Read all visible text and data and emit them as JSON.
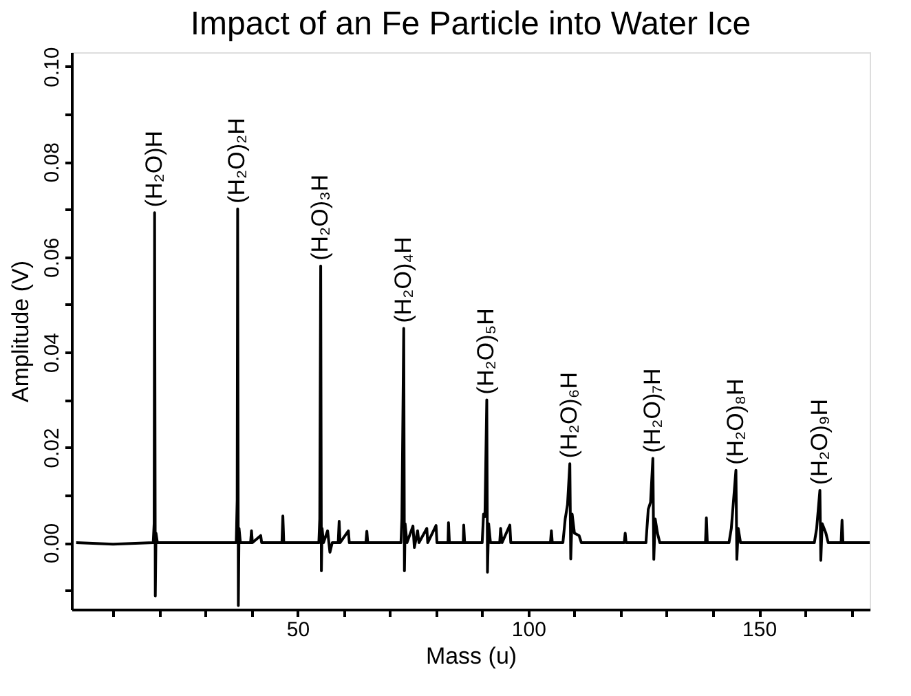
{
  "chart_data": {
    "type": "line",
    "title": "Impact of an Fe Particle into Water Ice",
    "xlabel": "Mass (u)",
    "ylabel": "Amplitude (V)",
    "xlim": [
      1,
      174
    ],
    "ylim": [
      -0.014,
      0.103
    ],
    "xticks": [
      {
        "value": 10,
        "label": null
      },
      {
        "value": 20,
        "label": null
      },
      {
        "value": 30,
        "label": null
      },
      {
        "value": 40,
        "label": null
      },
      50,
      {
        "value": 60,
        "label": null
      },
      {
        "value": 70,
        "label": null
      },
      {
        "value": 80,
        "label": null
      },
      {
        "value": 90,
        "label": null
      },
      100,
      {
        "value": 110,
        "label": null
      },
      {
        "value": 120,
        "label": null
      },
      {
        "value": 130,
        "label": null
      },
      {
        "value": 140,
        "label": null
      },
      150,
      {
        "value": 160,
        "label": null
      },
      {
        "value": 170,
        "label": null
      }
    ],
    "yticks": [
      {
        "value": -0.01,
        "label": null
      },
      {
        "value": 0,
        "label": "0.00"
      },
      {
        "value": 0.01,
        "label": null
      },
      {
        "value": 0.02,
        "label": "0.02"
      },
      {
        "value": 0.03,
        "label": null
      },
      {
        "value": 0.04,
        "label": "0.04"
      },
      {
        "value": 0.05,
        "label": null
      },
      {
        "value": 0.06,
        "label": "0.06"
      },
      {
        "value": 0.07,
        "label": null
      },
      {
        "value": 0.08,
        "label": "0.08"
      },
      {
        "value": 0.09,
        "label": null
      },
      {
        "value": 0.1,
        "label": "0.10"
      }
    ],
    "grid": false,
    "marker": "none",
    "line_style": "solid",
    "series": [
      {
        "color": "#000000",
        "x": [
          2,
          10,
          18.7,
          18.9,
          19,
          19.15,
          19.3,
          19.6,
          36.7,
          36.9,
          37,
          37.15,
          37.3,
          37.6,
          39.8,
          40,
          40.2,
          42,
          42.2,
          46.6,
          46.8,
          47,
          54.6,
          54.8,
          55,
          55.15,
          55.3,
          55.6,
          56.5,
          57,
          57.5,
          58.8,
          59,
          59.2,
          61,
          61.2,
          64.8,
          65,
          65.2,
          72.4,
          72.6,
          73,
          73.15,
          73.3,
          73.7,
          75,
          75.3,
          76,
          76.3,
          78,
          78.2,
          80,
          80.2,
          82.6,
          82.7,
          82.9,
          85.9,
          86,
          86.2,
          90,
          90.3,
          90.6,
          91,
          91.15,
          91.4,
          91.8,
          93.8,
          94,
          94.3,
          96,
          96.2,
          104.8,
          105,
          105.2,
          107.5,
          108,
          108.5,
          109,
          109.2,
          109.5,
          110,
          111,
          111.5,
          120.8,
          121,
          121.2,
          125.5,
          126,
          126.5,
          127,
          127.2,
          127.5,
          128,
          128.5,
          138.4,
          138.6,
          138.8,
          143.5,
          144,
          145,
          145.2,
          145.5,
          146,
          162,
          162.5,
          163.2,
          163.4,
          163.7,
          164.5,
          165,
          167.8,
          168,
          168.2,
          174
        ],
        "values": [
          0,
          -0.0003,
          0,
          0.004,
          0.0693,
          -0.0112,
          0.002,
          0,
          0,
          0.009,
          0.0701,
          -0.0132,
          0.003,
          0,
          0,
          0.0025,
          0,
          0.0015,
          0,
          0,
          0.0056,
          0,
          0,
          0.005,
          0.0581,
          -0.0059,
          0.003,
          0,
          0.0025,
          -0.002,
          0,
          0,
          0.0045,
          0,
          0.0025,
          0,
          0,
          0.0024,
          0,
          0,
          0.005,
          0.045,
          -0.0059,
          0.004,
          0,
          0.0035,
          -0.001,
          0.0025,
          0,
          0.003,
          0,
          0.0036,
          0,
          0,
          0.0042,
          0,
          0,
          0.0037,
          0,
          0,
          0.006,
          0.0055,
          0.03,
          -0.0062,
          0.004,
          0,
          0,
          0.003,
          0,
          0.0037,
          0,
          0,
          0.0025,
          0,
          0,
          0.005,
          0.008,
          0.0166,
          -0.0034,
          0.006,
          0.002,
          0.0015,
          0,
          0,
          0.002,
          0,
          0,
          0.007,
          0.0085,
          0.0177,
          -0.0035,
          0.005,
          0.002,
          0,
          0,
          0.0052,
          0,
          0,
          0.003,
          0.0152,
          -0.0035,
          0.003,
          0,
          0,
          0.003,
          0.011,
          -0.0037,
          0.004,
          0.002,
          0,
          0,
          0.0047,
          0,
          0
        ]
      }
    ],
    "annotations": [
      {
        "text": "(H₂O)H",
        "x": 19,
        "y": 0.0693
      },
      {
        "text": "(H₂O)₂H",
        "x": 37,
        "y": 0.0701
      },
      {
        "text": "(H₂O)₃H",
        "x": 55,
        "y": 0.0581
      },
      {
        "text": "(H₂O)₄H",
        "x": 73,
        "y": 0.045
      },
      {
        "text": "(H₂O)₅H",
        "x": 91,
        "y": 0.03
      },
      {
        "text": "(H₂O)₆H",
        "x": 109,
        "y": 0.0166
      },
      {
        "text": "(H₂O)₇H",
        "x": 127,
        "y": 0.0177
      },
      {
        "text": "(H₂O)₈H",
        "x": 145,
        "y": 0.0152
      },
      {
        "text": "(H₂O)₉H",
        "x": 163.2,
        "y": 0.011
      }
    ]
  }
}
